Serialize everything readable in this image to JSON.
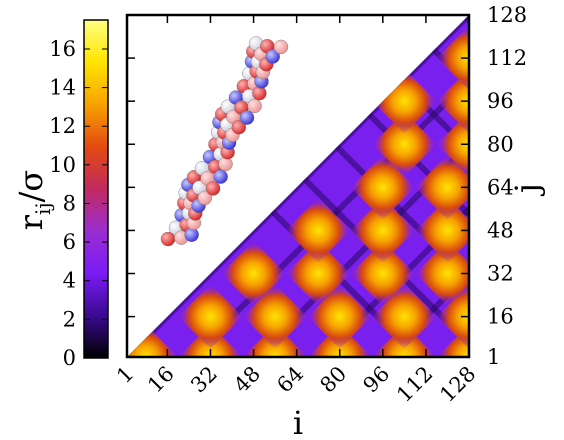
{
  "chart_data": {
    "type": "heatmap",
    "description_note": "",
    "xlabel": "i",
    "ylabel": "j",
    "colorbar_label_base": "r",
    "colorbar_label_sub": "ij",
    "colorbar_label_rest": "/σ",
    "x_ticks": [
      "1",
      "16",
      "32",
      "48",
      "64",
      "80",
      "96",
      "112",
      "128"
    ],
    "y_ticks": [
      "1",
      "16",
      "32",
      "48",
      "64",
      "80",
      "96",
      "112",
      "128"
    ],
    "x_range": [
      1,
      128
    ],
    "y_range": [
      1,
      128
    ],
    "colorbar_ticks": [
      "0",
      "2",
      "4",
      "6",
      "8",
      "10",
      "12",
      "14",
      "16"
    ],
    "colorbar_range": [
      0,
      17.5
    ],
    "colormap": [
      "#000000",
      "#3a0a8f",
      "#7a1bf5",
      "#9a2dd0",
      "#c12a60",
      "#e34a10",
      "#f7a200",
      "#ffe400",
      "#ffff80"
    ],
    "triangle": "lower-right (j < i)",
    "diamond_peaks": [
      {
        "i": 8,
        "j": 1
      },
      {
        "i": 32,
        "j": 1
      },
      {
        "i": 56,
        "j": 1
      },
      {
        "i": 80,
        "j": 1
      },
      {
        "i": 104,
        "j": 1
      },
      {
        "i": 128,
        "j": 1
      },
      {
        "i": 32,
        "j": 16
      },
      {
        "i": 56,
        "j": 16
      },
      {
        "i": 80,
        "j": 16
      },
      {
        "i": 104,
        "j": 16
      },
      {
        "i": 128,
        "j": 16
      },
      {
        "i": 48,
        "j": 32
      },
      {
        "i": 72,
        "j": 32
      },
      {
        "i": 96,
        "j": 32
      },
      {
        "i": 120,
        "j": 32
      },
      {
        "i": 72,
        "j": 48
      },
      {
        "i": 96,
        "j": 48
      },
      {
        "i": 120,
        "j": 48
      },
      {
        "i": 96,
        "j": 64
      },
      {
        "i": 120,
        "j": 64
      },
      {
        "i": 104,
        "j": 80
      },
      {
        "i": 128,
        "j": 80
      },
      {
        "i": 104,
        "j": 96
      },
      {
        "i": 128,
        "j": 96
      },
      {
        "i": 128,
        "j": 112
      }
    ],
    "peak_value": 17,
    "inset": "helical bead-chain molecular rendering with red, white and blue beads"
  }
}
